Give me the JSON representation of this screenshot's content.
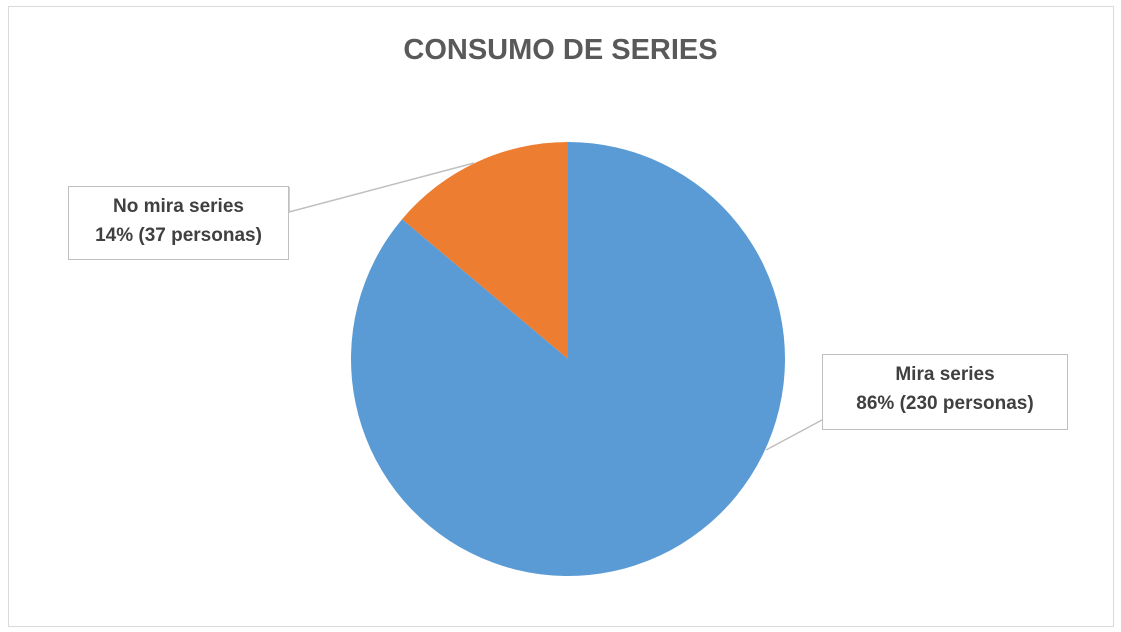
{
  "chart_data": {
    "type": "pie",
    "title": "CONSUMO DE SERIES",
    "categories": [
      "No mira series",
      "Mira series"
    ],
    "values": [
      37,
      230
    ],
    "percentages": [
      14,
      86
    ],
    "colors": [
      "#ED7D31",
      "#5B9BD5"
    ],
    "labels": [
      {
        "category": "No mira series",
        "text": "14% (37 personas)"
      },
      {
        "category": "Mira series",
        "text": "86% (230 personas)"
      }
    ],
    "legend": "none"
  }
}
